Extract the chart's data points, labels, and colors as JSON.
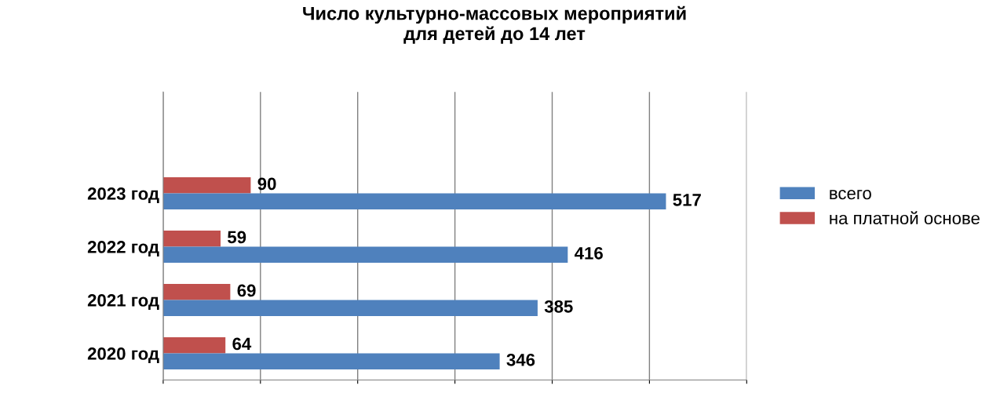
{
  "chart_data": {
    "type": "bar",
    "orientation": "horizontal",
    "title": "Число культурно-массовых мероприятий\nдля детей до 14 лет",
    "categories": [
      "2023 год",
      "2022 год",
      "2021 год",
      "2020 год"
    ],
    "series": [
      {
        "name": "на платной основе",
        "color": "#c0504d",
        "values": [
          90,
          59,
          69,
          64
        ]
      },
      {
        "name": "всего",
        "color": "#4f81bd",
        "values": [
          517,
          416,
          385,
          346
        ]
      }
    ],
    "xlim": [
      0,
      600
    ],
    "xticks": [
      {
        "value": 0,
        "label": null
      },
      {
        "value": 100,
        "label": null
      },
      {
        "value": 200,
        "label": null
      },
      {
        "value": 300,
        "label": null
      },
      {
        "value": 400,
        "label": null
      },
      {
        "value": 500,
        "label": null
      },
      {
        "value": 600,
        "label": null
      }
    ],
    "grid": "x",
    "legend": "right",
    "data_labels": true,
    "tick_labels": "y"
  }
}
